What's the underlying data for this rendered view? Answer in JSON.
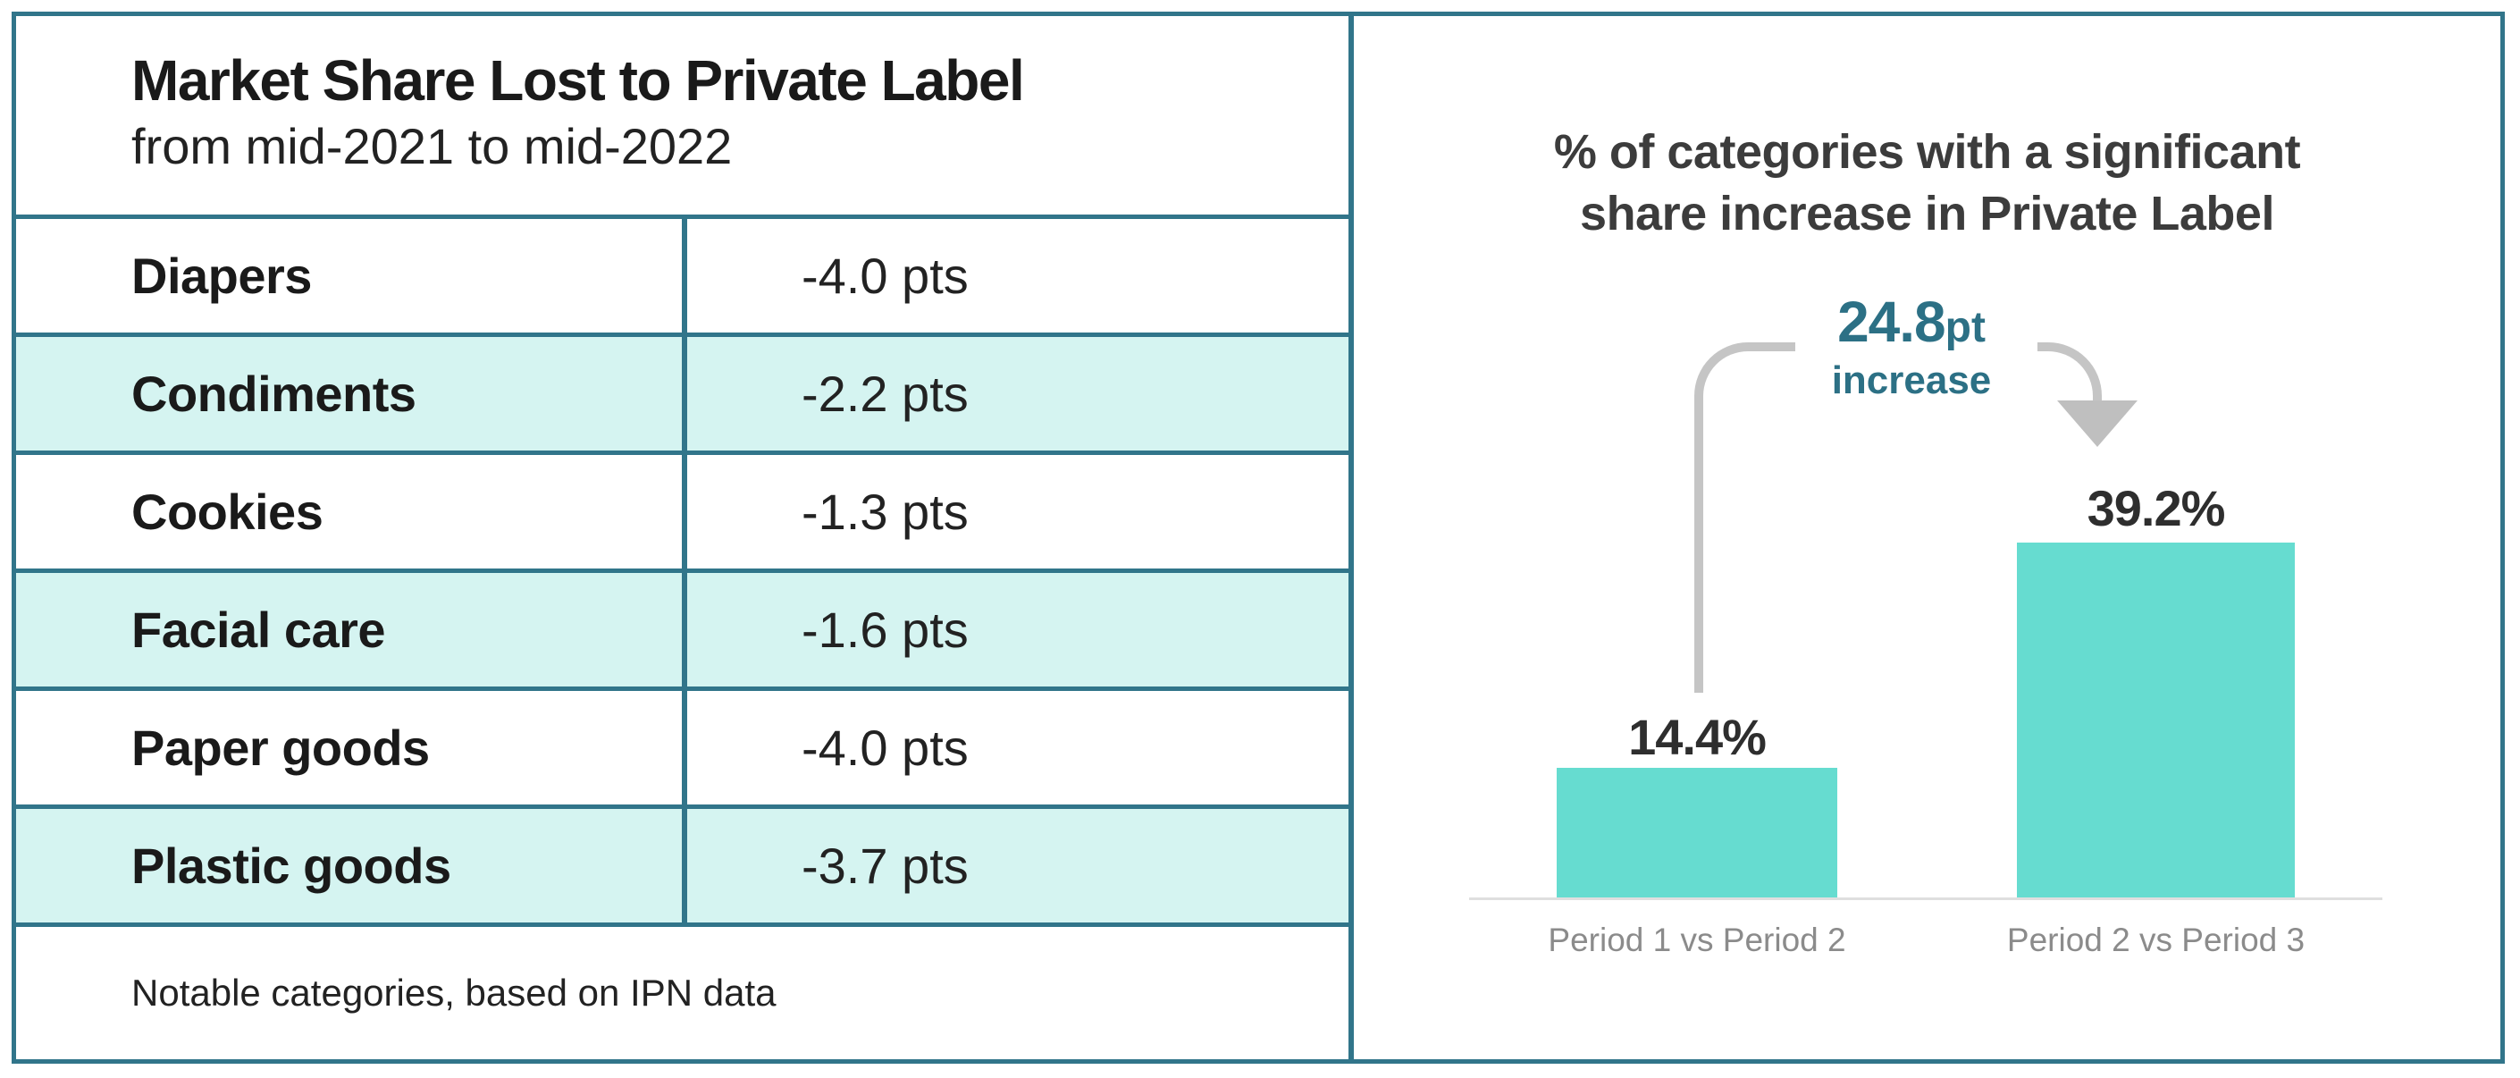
{
  "palette": {
    "teal_border": "#31758A",
    "row_cyan": "#D5F4F1",
    "bar_turquoise": "#66DCD0",
    "accent_teal": "#2C7085",
    "dark_text": "#1A1A1A",
    "chart_title_gray": "#3C3C3C",
    "axis_label_gray": "#8B8B8B",
    "arrow_gray": "#C5C5C5"
  },
  "table": {
    "title": "Market Share Lost to Private Label",
    "subtitle": "from mid-2021 to mid-2022",
    "rows": [
      {
        "category": "Diapers",
        "value": "-4.0 pts"
      },
      {
        "category": "Condiments",
        "value": "-2.2 pts"
      },
      {
        "category": "Cookies",
        "value": "-1.3 pts"
      },
      {
        "category": "Facial care",
        "value": "-1.6 pts"
      },
      {
        "category": "Paper goods",
        "value": "-4.0 pts"
      },
      {
        "category": "Plastic goods",
        "value": "-3.7 pts"
      }
    ],
    "footnote": "Notable categories, based on IPN data"
  },
  "chart": {
    "title_line1": "% of categories with a significant",
    "title_line2": "share increase in Private Label",
    "annotation_value": "24.8",
    "annotation_unit": "pt",
    "annotation_label": "increase",
    "bars": [
      {
        "label": "Period 1 vs Period 2",
        "value": 14.4,
        "value_label": "14.4%"
      },
      {
        "label": "Period 2 vs Period 3",
        "value": 39.2,
        "value_label": "39.2%"
      }
    ]
  },
  "chart_data": [
    {
      "type": "table",
      "title": "Market Share Lost to Private Label",
      "subtitle": "from mid-2021 to mid-2022",
      "columns": [
        "category",
        "share_change_pts"
      ],
      "rows": [
        [
          "Diapers",
          -4.0
        ],
        [
          "Condiments",
          -2.2
        ],
        [
          "Cookies",
          -1.3
        ],
        [
          "Facial care",
          -1.6
        ],
        [
          "Paper goods",
          -4.0
        ],
        [
          "Plastic goods",
          -3.7
        ]
      ],
      "footnote": "Notable categories, based on IPN data"
    },
    {
      "type": "bar",
      "title": "% of categories with a significant share increase in Private Label",
      "categories": [
        "Period 1 vs Period 2",
        "Period 2 vs Period 3"
      ],
      "values": [
        14.4,
        39.2
      ],
      "data_labels": [
        "14.4%",
        "39.2%"
      ],
      "annotation": "24.8pt increase",
      "ylim": [
        0,
        45
      ],
      "grid": false,
      "legend_position": "none",
      "bar_color": "#66DCD0"
    }
  ]
}
